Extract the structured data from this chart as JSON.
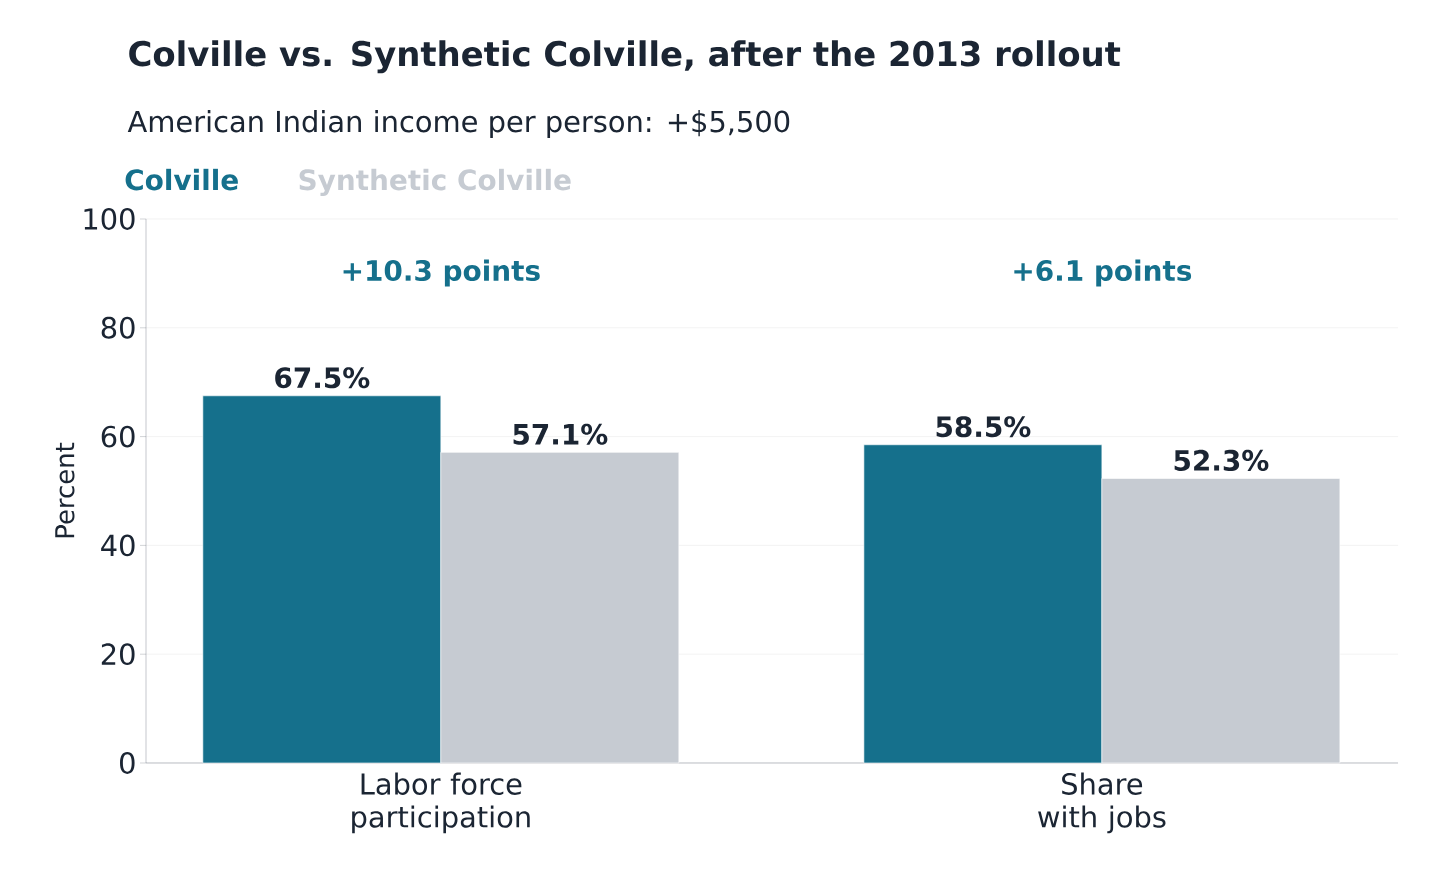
{
  "chart_data": {
    "type": "bar",
    "title": "Colville vs. Synthetic Colville, after the 2013 rollout",
    "subtitle": "American Indian income per person:  +$5,500",
    "ylabel": "Percent",
    "categories": [
      "Labor force participation",
      "Share with jobs"
    ],
    "series": [
      {
        "name": "Colville",
        "color": "#15708c",
        "values": [
          67.5,
          58.5
        ],
        "value_labels": [
          "67.5%",
          "58.5%"
        ]
      },
      {
        "name": "Synthetic Colville",
        "color": "#c6cbd2",
        "values": [
          57.1,
          52.3
        ],
        "value_labels": [
          "57.1%",
          "52.3%"
        ]
      }
    ],
    "annotations": [
      "+10.3 points",
      "+6.1 points"
    ],
    "ylim": [
      0,
      100
    ],
    "yticks": [
      0,
      20,
      40,
      60,
      80,
      100
    ],
    "grid": "y",
    "legend": "top left"
  }
}
